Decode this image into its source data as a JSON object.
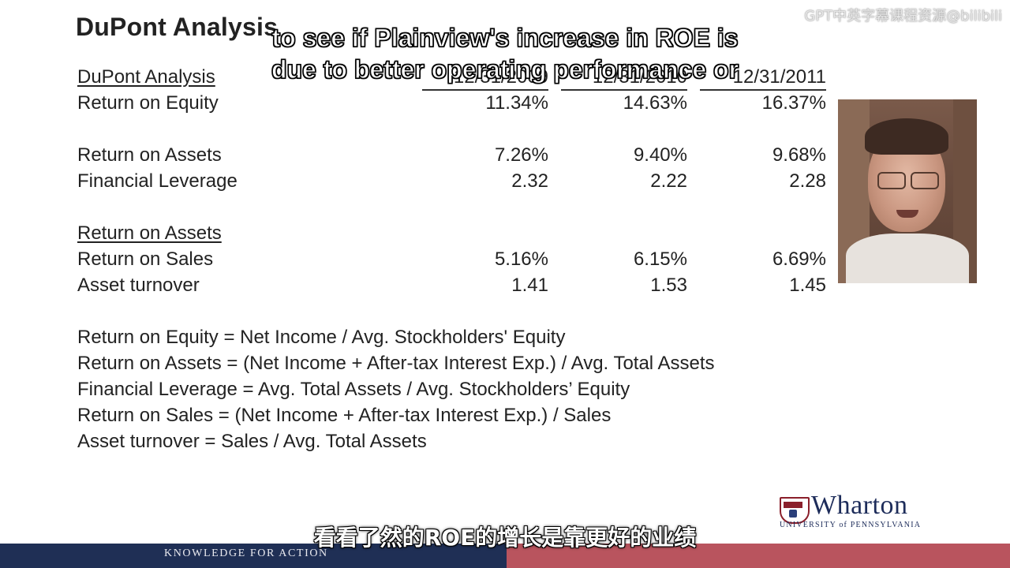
{
  "slide": {
    "title": "DuPont Analysis",
    "watermark": "GPT中英字幕课程资源@bilibili"
  },
  "table": {
    "section1_heading": "DuPont Analysis",
    "column_headers": [
      "12/31/2009",
      "12/31/2010",
      "12/31/2011"
    ],
    "section1_rows": [
      {
        "label": "Return on Equity",
        "values": [
          "11.34%",
          "14.63%",
          "16.37%"
        ]
      },
      {
        "label": "Return on Assets",
        "values": [
          "7.26%",
          "9.40%",
          "9.68%"
        ]
      },
      {
        "label": "Financial Leverage",
        "values": [
          "2.32",
          "2.22",
          "2.28"
        ]
      }
    ],
    "section2_heading": "Return on Assets",
    "section2_rows": [
      {
        "label": "Return on Sales",
        "values": [
          "5.16%",
          "6.15%",
          "6.69%"
        ]
      },
      {
        "label": "Asset turnover",
        "values": [
          "1.41",
          "1.53",
          "1.45"
        ]
      }
    ]
  },
  "formulas": [
    "Return on Equity = Net Income / Avg. Stockholders' Equity",
    "Return on Assets = (Net Income + After-tax Interest Exp.) / Avg. Total Assets",
    "Financial Leverage = Avg. Total Assets / Avg. Stockholders’ Equity",
    "Return on Sales =  (Net Income + After-tax Interest Exp.) / Sales",
    "Asset turnover = Sales / Avg. Total Assets"
  ],
  "subtitles": {
    "english_line1": "to see if Plainview's increase in ROE is",
    "english_line2": "due to better operating performance or",
    "chinese": "看看了然的ROE的增长是靠更好的业绩"
  },
  "logo": {
    "name": "Wharton",
    "university": "UNIVERSITY of PENNSYLVANIA"
  },
  "footer": {
    "tagline": "KNOWLEDGE FOR ACTION"
  }
}
